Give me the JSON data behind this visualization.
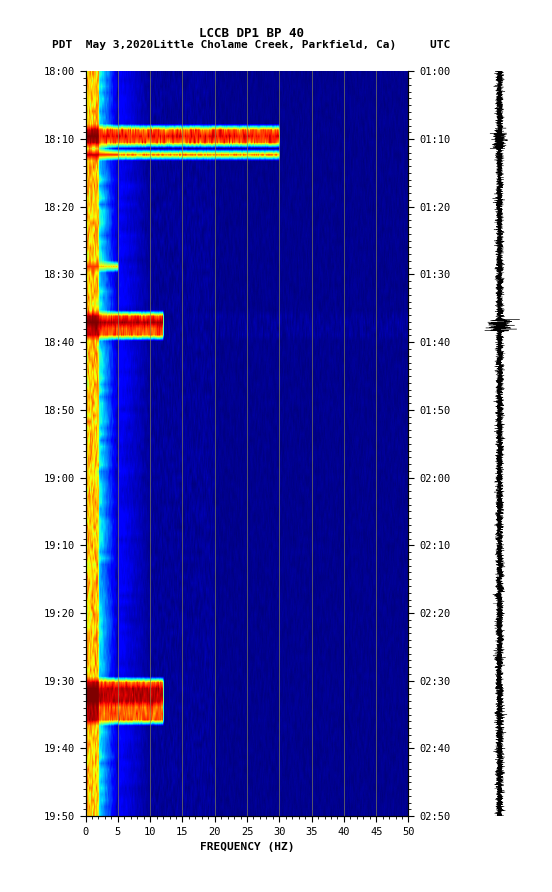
{
  "title_line1": "LCCB DP1 BP 40",
  "title_line2": "PDT  May 3,2020Little Cholame Creek, Parkfield, Ca)     UTC",
  "xlabel": "FREQUENCY (HZ)",
  "freq_min": 0,
  "freq_max": 50,
  "freq_ticks": [
    0,
    5,
    10,
    15,
    20,
    25,
    30,
    35,
    40,
    45,
    50
  ],
  "time_labels_left": [
    "18:00",
    "18:10",
    "18:20",
    "18:30",
    "18:40",
    "18:50",
    "19:00",
    "19:10",
    "19:20",
    "19:30",
    "19:40",
    "19:50"
  ],
  "time_labels_right": [
    "01:00",
    "01:10",
    "01:20",
    "01:30",
    "01:40",
    "01:50",
    "02:00",
    "02:10",
    "02:20",
    "02:30",
    "02:40",
    "02:50"
  ],
  "n_time_steps": 120,
  "n_freq_bins": 500,
  "bg_color": "white",
  "spectrogram_cmap": "jet",
  "vertical_line_color": "#888855",
  "vertical_line_freqs": [
    5,
    10,
    15,
    20,
    25,
    30,
    35,
    40,
    45
  ],
  "logo_color": "#006633",
  "figsize": [
    5.52,
    8.92
  ],
  "dpi": 100
}
